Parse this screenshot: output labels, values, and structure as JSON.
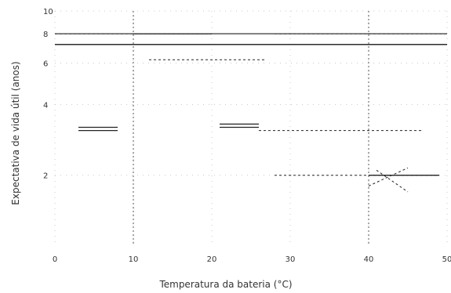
{
  "chart_data": {
    "type": "line",
    "title": "",
    "xlabel": "Temperatura da bateria (°C)",
    "ylabel": "Expectativa de vida útil (anos)",
    "xlim": [
      0,
      50
    ],
    "ylim": [
      1,
      10
    ],
    "yscale": "log",
    "x_ticks": [
      0,
      10,
      20,
      30,
      40,
      50
    ],
    "y_ticks": [
      2,
      4,
      6,
      8,
      10
    ],
    "grid": "dotted",
    "legend": "none",
    "reference_lines": {
      "horizontal": [
        8,
        7.2
      ],
      "vertical": [
        10,
        40
      ]
    },
    "series": [
      {
        "x": [
          0,
          10,
          20
        ],
        "y": [
          8,
          8,
          8
        ],
        "style": "dashed"
      },
      {
        "x": [
          10,
          20
        ],
        "y": [
          8,
          8
        ],
        "style": "solid"
      },
      {
        "x": [
          28,
          50
        ],
        "y": [
          8,
          8
        ],
        "style": "dashed"
      },
      {
        "x": [
          0,
          50
        ],
        "y": [
          7.2,
          7.2
        ],
        "style": "solid"
      },
      {
        "x": [
          12,
          27
        ],
        "y": [
          6.2,
          6.2
        ],
        "style": "dashed"
      },
      {
        "x": [
          3,
          8
        ],
        "y": [
          3.1,
          3.1
        ],
        "style": "solid"
      },
      {
        "x": [
          3,
          8
        ],
        "y": [
          3.2,
          3.2
        ],
        "style": "solid"
      },
      {
        "x": [
          21,
          26
        ],
        "y": [
          3.3,
          3.3
        ],
        "style": "solid"
      },
      {
        "x": [
          21,
          26
        ],
        "y": [
          3.2,
          3.2
        ],
        "style": "solid"
      },
      {
        "x": [
          26,
          47
        ],
        "y": [
          3.1,
          3.1
        ],
        "style": "dashed"
      },
      {
        "x": [
          28,
          49
        ],
        "y": [
          2.0,
          2.0
        ],
        "style": "dashed"
      },
      {
        "x": [
          40,
          49
        ],
        "y": [
          2.0,
          2.0
        ],
        "style": "solid"
      },
      {
        "x": [
          40,
          45
        ],
        "y": [
          1.8,
          2.15
        ],
        "style": "dashed"
      },
      {
        "x": [
          41,
          45
        ],
        "y": [
          2.1,
          1.7
        ],
        "style": "dashed"
      }
    ]
  }
}
